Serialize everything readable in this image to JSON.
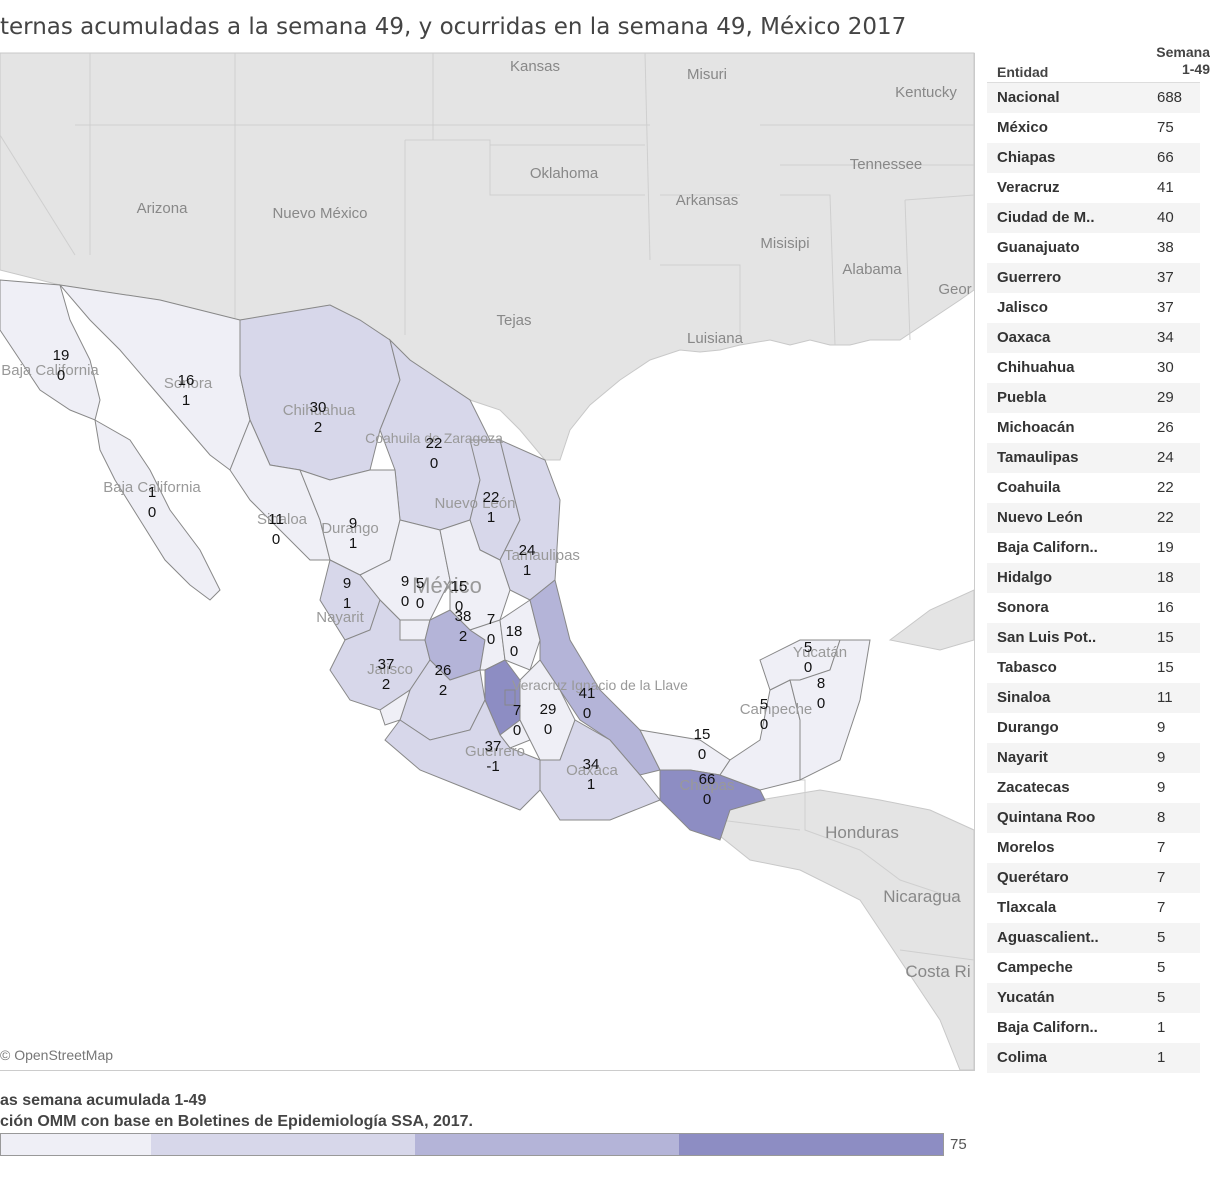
{
  "title": "ternas acumuladas a la semana 49, y ocurridas en la semana 49, México 2017",
  "map": {
    "attribution": "© OpenStreetMap",
    "base_labels": [
      "Kansas",
      "Misuri",
      "Kentucky",
      "Tennessee",
      "Oklahoma",
      "Arkansas",
      "Arizona",
      "Nuevo México",
      "Misisipi",
      "Alabama",
      "Geor",
      "Tejas",
      "Luisiana",
      "Honduras",
      "Nicaragua",
      "Costa Ri"
    ],
    "state_labels": [
      "Baja California",
      "Sonora",
      "Chihuahua",
      "Coahuila de Zaragoza",
      "Nuevo León",
      "Tamaulipas",
      "Baja California",
      "Sinaloa",
      "Durango",
      "México",
      "Nayarit",
      "Jalisco",
      "Veracruz Ignacio de la Llave",
      "Guerrero",
      "Oaxaca",
      "Chiapas",
      "Campeche",
      "Yucatán"
    ],
    "values": [
      {
        "a": "19",
        "b": "0"
      },
      {
        "a": "16",
        "b": "1"
      },
      {
        "a": "30",
        "b": "2"
      },
      {
        "a": "22",
        "b": "0"
      },
      {
        "a": "22",
        "b": "1"
      },
      {
        "a": "1",
        "b": "0"
      },
      {
        "a": "11",
        "b": "0"
      },
      {
        "a": "9",
        "b": "1"
      },
      {
        "a": "24",
        "b": "1"
      },
      {
        "a": "9",
        "b": "0"
      },
      {
        "a": "15",
        "b": "0"
      },
      {
        "a": "9",
        "b": "1"
      },
      {
        "a": "5",
        "b": "0"
      },
      {
        "a": "38",
        "b": "2"
      },
      {
        "a": "7",
        "b": "0"
      },
      {
        "a": "18",
        "b": "0"
      },
      {
        "a": "37",
        "b": "2"
      },
      {
        "a": "26",
        "b": "2"
      },
      {
        "a": "7",
        "b": "0"
      },
      {
        "a": "29",
        "b": "0"
      },
      {
        "a": "41",
        "b": "0"
      },
      {
        "a": "37",
        "b": "-1"
      },
      {
        "a": "34",
        "b": "1"
      },
      {
        "a": "15",
        "b": "0"
      },
      {
        "a": "66",
        "b": "0"
      },
      {
        "a": "5",
        "b": "0"
      },
      {
        "a": "5",
        "b": "0"
      },
      {
        "a": "8",
        "b": "0"
      }
    ]
  },
  "table": {
    "col_entidad": "Entidad",
    "col_semana_l1": "Semana",
    "col_semana_l2": "1-49",
    "rows": [
      {
        "entidad": "Nacional",
        "valor": "688"
      },
      {
        "entidad": "México",
        "valor": "75"
      },
      {
        "entidad": "Chiapas",
        "valor": "66"
      },
      {
        "entidad": "Veracruz",
        "valor": "41"
      },
      {
        "entidad": "Ciudad de M..",
        "valor": "40"
      },
      {
        "entidad": "Guanajuato",
        "valor": "38"
      },
      {
        "entidad": "Guerrero",
        "valor": "37"
      },
      {
        "entidad": "Jalisco",
        "valor": "37"
      },
      {
        "entidad": "Oaxaca",
        "valor": "34"
      },
      {
        "entidad": "Chihuahua",
        "valor": "30"
      },
      {
        "entidad": "Puebla",
        "valor": "29"
      },
      {
        "entidad": "Michoacán",
        "valor": "26"
      },
      {
        "entidad": "Tamaulipas",
        "valor": "24"
      },
      {
        "entidad": "Coahuila",
        "valor": "22"
      },
      {
        "entidad": "Nuevo León",
        "valor": "22"
      },
      {
        "entidad": "Baja Californ..",
        "valor": "19"
      },
      {
        "entidad": "Hidalgo",
        "valor": "18"
      },
      {
        "entidad": "Sonora",
        "valor": "16"
      },
      {
        "entidad": "San Luis Pot..",
        "valor": "15"
      },
      {
        "entidad": "Tabasco",
        "valor": "15"
      },
      {
        "entidad": "Sinaloa",
        "valor": "11"
      },
      {
        "entidad": "Durango",
        "valor": "9"
      },
      {
        "entidad": "Nayarit",
        "valor": "9"
      },
      {
        "entidad": "Zacatecas",
        "valor": "9"
      },
      {
        "entidad": "Quintana Roo",
        "valor": "8"
      },
      {
        "entidad": "Morelos",
        "valor": "7"
      },
      {
        "entidad": "Querétaro",
        "valor": "7"
      },
      {
        "entidad": "Tlaxcala",
        "valor": "7"
      },
      {
        "entidad": "Aguascalient..",
        "valor": "5"
      },
      {
        "entidad": "Campeche",
        "valor": "5"
      },
      {
        "entidad": "Yucatán",
        "valor": "5"
      },
      {
        "entidad": "Baja Californ..",
        "valor": "1"
      },
      {
        "entidad": "Colima",
        "valor": "1"
      }
    ]
  },
  "footer": {
    "line1": "as semana acumulada 1-49",
    "line2": "ción OMM con base en Boletines de Epidemiología SSA, 2017."
  },
  "legend": {
    "max_label": "75",
    "colors": [
      "#efeff6",
      "#d7d7ea",
      "#b4b4d8",
      "#8d8dc3"
    ]
  },
  "colors": {
    "land": "#e4e4e4",
    "water": "#ffffff",
    "mx_light": "#efeff6",
    "mx_mid": "#d7d7ea",
    "mx_med": "#b4b4d8",
    "mx_dark": "#8d8dc3"
  }
}
